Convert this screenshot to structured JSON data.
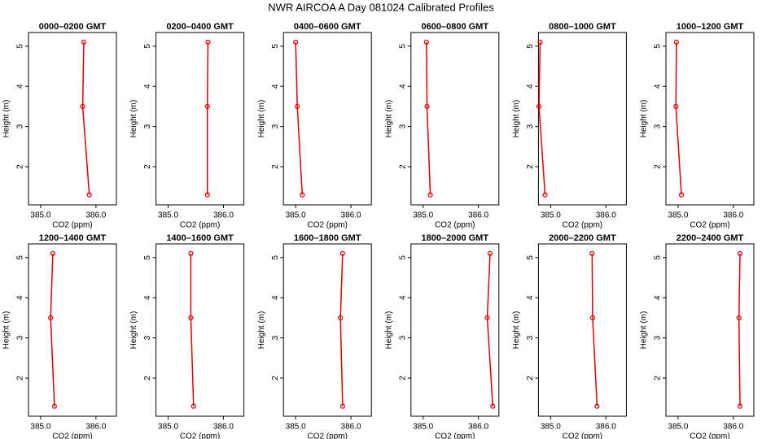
{
  "title": "NWR AIRCOA A  Day 081024  Calibrated Profiles",
  "chart_data": [
    {
      "type": "line",
      "title": "0000–0200 GMT",
      "xlabel": "CO2 (ppm)",
      "ylabel": "Height (m)",
      "color": "#e00000",
      "x": [
        385.78,
        385.76,
        385.88
      ],
      "y": [
        5.1,
        3.5,
        1.3
      ],
      "xlim": [
        384.78,
        386.37
      ],
      "xticks": [
        {
          "value": 385,
          "label": "385.0"
        },
        {
          "value": 386,
          "label": "386.0"
        }
      ],
      "ylim": [
        1.05,
        5.34
      ],
      "yticks": [
        2,
        3,
        4,
        5
      ]
    },
    {
      "type": "line",
      "title": "0200–0400 GMT",
      "xlabel": "CO2 (ppm)",
      "ylabel": "Height (m)",
      "color": "#e00000",
      "x": [
        385.72,
        385.71,
        385.71
      ],
      "y": [
        5.1,
        3.5,
        1.3
      ],
      "xlim": [
        384.78,
        386.37
      ],
      "xticks": [
        {
          "value": 385,
          "label": "385.0"
        },
        {
          "value": 386,
          "label": "386.0"
        }
      ],
      "ylim": [
        1.05,
        5.34
      ],
      "yticks": [
        2,
        3,
        4,
        5
      ]
    },
    {
      "type": "line",
      "title": "0400–0600 GMT",
      "xlabel": "CO2 (ppm)",
      "ylabel": "Height (m)",
      "color": "#e00000",
      "x": [
        385.0,
        385.03,
        385.12
      ],
      "y": [
        5.1,
        3.5,
        1.3
      ],
      "xlim": [
        384.78,
        386.37
      ],
      "xticks": [
        {
          "value": 385,
          "label": "385.0"
        },
        {
          "value": 386,
          "label": "386.0"
        }
      ],
      "ylim": [
        1.05,
        5.34
      ],
      "yticks": [
        2,
        3,
        4,
        5
      ]
    },
    {
      "type": "line",
      "title": "0600–0800 GMT",
      "xlabel": "CO2 (ppm)",
      "ylabel": "Height (m)",
      "color": "#e00000",
      "x": [
        385.06,
        385.07,
        385.13
      ],
      "y": [
        5.1,
        3.5,
        1.3
      ],
      "xlim": [
        384.78,
        386.37
      ],
      "xticks": [
        {
          "value": 385,
          "label": "385.0"
        },
        {
          "value": 386,
          "label": "386.0"
        }
      ],
      "ylim": [
        1.05,
        5.34
      ],
      "yticks": [
        2,
        3,
        4,
        5
      ]
    },
    {
      "type": "line",
      "title": "0800–1000 GMT",
      "xlabel": "CO2 (ppm)",
      "ylabel": "Height (m)",
      "color": "#e00000",
      "x": [
        384.81,
        384.79,
        384.9
      ],
      "y": [
        5.1,
        3.5,
        1.3
      ],
      "xlim": [
        384.78,
        386.37
      ],
      "xticks": [
        {
          "value": 385,
          "label": "385.0"
        },
        {
          "value": 386,
          "label": "386.0"
        }
      ],
      "ylim": [
        1.05,
        5.34
      ],
      "yticks": [
        2,
        3,
        4,
        5
      ]
    },
    {
      "type": "line",
      "title": "1000–1200 GMT",
      "xlabel": "CO2 (ppm)",
      "ylabel": "Height (m)",
      "color": "#e00000",
      "x": [
        384.97,
        384.96,
        385.06
      ],
      "y": [
        5.1,
        3.5,
        1.3
      ],
      "xlim": [
        384.78,
        386.37
      ],
      "xticks": [
        {
          "value": 385,
          "label": "385.0"
        },
        {
          "value": 386,
          "label": "386.0"
        }
      ],
      "ylim": [
        1.05,
        5.34
      ],
      "yticks": [
        2,
        3,
        4,
        5
      ]
    },
    {
      "type": "line",
      "title": "1200–1400 GMT",
      "xlabel": "CO2 (ppm)",
      "ylabel": "Height (m)",
      "color": "#e00000",
      "x": [
        385.22,
        385.18,
        385.25
      ],
      "y": [
        5.1,
        3.5,
        1.3
      ],
      "xlim": [
        384.78,
        386.37
      ],
      "xticks": [
        {
          "value": 385,
          "label": "385.0"
        },
        {
          "value": 386,
          "label": "386.0"
        }
      ],
      "ylim": [
        1.05,
        5.34
      ],
      "yticks": [
        2,
        3,
        4,
        5
      ]
    },
    {
      "type": "line",
      "title": "1400–1600 GMT",
      "xlabel": "CO2 (ppm)",
      "ylabel": "Height (m)",
      "color": "#e00000",
      "x": [
        385.41,
        385.41,
        385.46
      ],
      "y": [
        5.1,
        3.5,
        1.3
      ],
      "xlim": [
        384.78,
        386.37
      ],
      "xticks": [
        {
          "value": 385,
          "label": "385.0"
        },
        {
          "value": 386,
          "label": "386.0"
        }
      ],
      "ylim": [
        1.05,
        5.34
      ],
      "yticks": [
        2,
        3,
        4,
        5
      ]
    },
    {
      "type": "line",
      "title": "1600–1800 GMT",
      "xlabel": "CO2 (ppm)",
      "ylabel": "Height (m)",
      "color": "#e00000",
      "x": [
        385.85,
        385.81,
        385.85
      ],
      "y": [
        5.1,
        3.5,
        1.3
      ],
      "xlim": [
        384.78,
        386.37
      ],
      "xticks": [
        {
          "value": 385,
          "label": "385.0"
        },
        {
          "value": 386,
          "label": "386.0"
        }
      ],
      "ylim": [
        1.05,
        5.34
      ],
      "yticks": [
        2,
        3,
        4,
        5
      ]
    },
    {
      "type": "line",
      "title": "1800–2000 GMT",
      "xlabel": "CO2 (ppm)",
      "ylabel": "Height (m)",
      "color": "#e00000",
      "x": [
        386.21,
        386.16,
        386.26
      ],
      "y": [
        5.1,
        3.5,
        1.3
      ],
      "xlim": [
        384.78,
        386.37
      ],
      "xticks": [
        {
          "value": 385,
          "label": "385.0"
        },
        {
          "value": 386,
          "label": "386.0"
        }
      ],
      "ylim": [
        1.05,
        5.34
      ],
      "yticks": [
        2,
        3,
        4,
        5
      ]
    },
    {
      "type": "line",
      "title": "2000–2200 GMT",
      "xlabel": "CO2 (ppm)",
      "ylabel": "Height (m)",
      "color": "#e00000",
      "x": [
        385.75,
        385.76,
        385.84
      ],
      "y": [
        5.1,
        3.5,
        1.3
      ],
      "xlim": [
        384.78,
        386.37
      ],
      "xticks": [
        {
          "value": 385,
          "label": "385.0"
        },
        {
          "value": 386,
          "label": "386.0"
        }
      ],
      "ylim": [
        1.05,
        5.34
      ],
      "yticks": [
        2,
        3,
        4,
        5
      ]
    },
    {
      "type": "line",
      "title": "2200–2400 GMT",
      "xlabel": "CO2 (ppm)",
      "ylabel": "Height (m)",
      "color": "#e00000",
      "x": [
        386.12,
        386.1,
        386.12
      ],
      "y": [
        5.1,
        3.5,
        1.3
      ],
      "xlim": [
        384.78,
        386.37
      ],
      "xticks": [
        {
          "value": 385,
          "label": "385.0"
        },
        {
          "value": 386,
          "label": "386.0"
        }
      ],
      "ylim": [
        1.05,
        5.34
      ],
      "yticks": [
        2,
        3,
        4,
        5
      ]
    }
  ]
}
